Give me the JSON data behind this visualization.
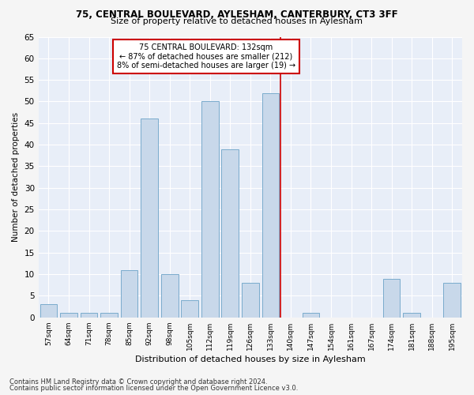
{
  "title1": "75, CENTRAL BOULEVARD, AYLESHAM, CANTERBURY, CT3 3FF",
  "title2": "Size of property relative to detached houses in Aylesham",
  "xlabel": "Distribution of detached houses by size in Aylesham",
  "ylabel": "Number of detached properties",
  "footer1": "Contains HM Land Registry data © Crown copyright and database right 2024.",
  "footer2": "Contains public sector information licensed under the Open Government Licence v3.0.",
  "categories": [
    "57sqm",
    "64sqm",
    "71sqm",
    "78sqm",
    "85sqm",
    "92sqm",
    "98sqm",
    "105sqm",
    "112sqm",
    "119sqm",
    "126sqm",
    "133sqm",
    "140sqm",
    "147sqm",
    "154sqm",
    "161sqm",
    "167sqm",
    "174sqm",
    "181sqm",
    "188sqm",
    "195sqm"
  ],
  "values": [
    3,
    1,
    1,
    1,
    11,
    46,
    10,
    4,
    50,
    39,
    8,
    52,
    0,
    1,
    0,
    0,
    0,
    9,
    1,
    0,
    8
  ],
  "bar_color": "#c8d8ea",
  "bar_edge_color": "#7aabcc",
  "bg_color": "#e8eef8",
  "grid_color": "#ffffff",
  "vline_color": "#cc0000",
  "vline_index": 11,
  "annotation_line1": "75 CENTRAL BOULEVARD: 132sqm",
  "annotation_line2": "← 87% of detached houses are smaller (212)",
  "annotation_line3": "8% of semi-detached houses are larger (19) →",
  "annotation_box_color": "#ffffff",
  "annotation_border_color": "#cc0000",
  "ylim": [
    0,
    65
  ],
  "yticks": [
    0,
    5,
    10,
    15,
    20,
    25,
    30,
    35,
    40,
    45,
    50,
    55,
    60,
    65
  ],
  "fig_width": 6.0,
  "fig_height": 5.0,
  "fig_dpi": 100
}
